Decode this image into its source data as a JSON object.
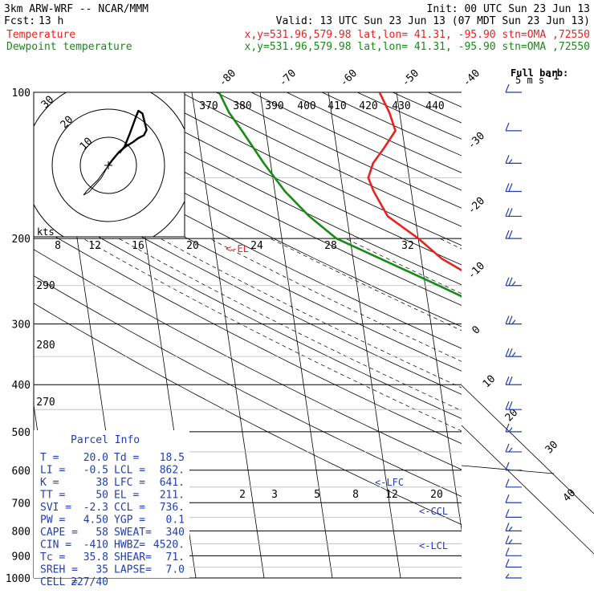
{
  "header": {
    "model": "3km ARW-WRF -- NCAR/MMM",
    "init": "Init: 00 UTC Sun 23 Jun 13",
    "fcst_label": "Fcst:",
    "fcst_value": "13 h",
    "valid": "Valid: 13 UTC Sun 23 Jun 13 (07 MDT Sun 23 Jun 13)",
    "temp_label": "Temperature",
    "temp_info": "x,y=531.96,579.98   lat,lon= 41.31, -95.90   stn=OMA ,72550",
    "dew_label": "Dewpoint temperature",
    "dew_info": "x,y=531.96,579.98   lat,lon= 41.31, -95.90   stn=OMA ,72550"
  },
  "barb_legend": {
    "line1": "Full barb:",
    "line2": "5 m s",
    "superscript": "-1"
  },
  "hodograph": {
    "units_label": "kts",
    "ring_labels": [
      "10",
      "20",
      "30"
    ]
  },
  "parcel_info": {
    "title": "Parcel Info",
    "rows": [
      [
        "T  =",
        "20.0",
        "Td =",
        "18.5"
      ],
      [
        "LI =",
        "-0.5",
        "LCL =",
        "862."
      ],
      [
        "K  =",
        "38",
        "LFC =",
        "641."
      ],
      [
        "TT =",
        "50",
        "EL  =",
        "211."
      ],
      [
        "SVI =",
        "-2.3",
        "CCL =",
        "736."
      ],
      [
        "PW =",
        "4.50",
        "YGP =",
        "0.1"
      ],
      [
        "CAPE =",
        "58",
        "SWEAT=",
        "340"
      ],
      [
        "CIN =",
        "-410",
        "HWBZ=",
        "4520."
      ],
      [
        "Tc =",
        "35.8",
        "SHEAR=",
        "71."
      ],
      [
        "SREH =",
        "35",
        "LAPSE=",
        "7.0"
      ],
      [
        "CELL =",
        "227/40",
        "",
        ""
      ]
    ]
  },
  "level_marks": {
    "el": "<-EL",
    "lfc": "<-LFC",
    "ccl": "<-CCL",
    "lcl": "<-LCL"
  },
  "colors": {
    "temperature": "#e8231e",
    "dewpoint": "#178a17",
    "barbs": "#1f3fb0",
    "grid": "#000000",
    "gray": "#b9b9b9"
  },
  "chart_data": {
    "type": "line",
    "title": "",
    "ylabel": "",
    "xlabel": "",
    "y_axis": {
      "scale": "log-pressure",
      "ticks": [
        100,
        200,
        300,
        400,
        500,
        600,
        700,
        800,
        900,
        1000
      ]
    },
    "isotherm_labels": [
      "-80",
      "-70",
      "-60",
      "-50",
      "-40",
      "-30",
      "-20",
      "-10",
      "0",
      "10",
      "20",
      "30",
      "40"
    ],
    "theta_labels": [
      "370",
      "380",
      "390",
      "400",
      "410",
      "420",
      "430",
      "440"
    ],
    "theta_side_labels": [
      "290",
      "280",
      "270"
    ],
    "mixing_ratio_labels": [
      "8",
      "12",
      "16",
      "20",
      "24",
      "28",
      "32"
    ],
    "mixing_ratio_lower_labels": [
      "2",
      "3",
      "5",
      "8",
      "12",
      "20"
    ],
    "series": [
      {
        "name": "Temperature",
        "points": [
          [
            1000,
            21.0
          ],
          [
            975,
            22.0
          ],
          [
            950,
            25.5
          ],
          [
            925,
            25.0
          ],
          [
            900,
            23.0
          ],
          [
            850,
            21.0
          ],
          [
            800,
            17.0
          ],
          [
            750,
            14.0
          ],
          [
            700,
            10.5
          ],
          [
            650,
            7.0
          ],
          [
            600,
            4.0
          ],
          [
            550,
            -0.2
          ],
          [
            500,
            -4.8
          ],
          [
            450,
            -10.0
          ],
          [
            400,
            -16.2
          ],
          [
            350,
            -23.5
          ],
          [
            300,
            -31.5
          ],
          [
            250,
            -40.8
          ],
          [
            220,
            -47.0
          ],
          [
            200,
            -50.0
          ],
          [
            180,
            -54.0
          ],
          [
            160,
            -55.5
          ],
          [
            150,
            -56.0
          ],
          [
            140,
            -55.0
          ],
          [
            130,
            -53.0
          ],
          [
            120,
            -51.0
          ],
          [
            110,
            -51.5
          ],
          [
            100,
            -52.5
          ]
        ]
      },
      {
        "name": "Dewpoint temperature",
        "points": [
          [
            1000,
            19.0
          ],
          [
            975,
            18.0
          ],
          [
            950,
            18.5
          ],
          [
            925,
            18.7
          ],
          [
            900,
            17.8
          ],
          [
            850,
            16.5
          ],
          [
            800,
            14.0
          ],
          [
            750,
            11.2
          ],
          [
            700,
            9.0
          ],
          [
            650,
            6.0
          ],
          [
            600,
            3.0
          ],
          [
            550,
            -0.5
          ],
          [
            500,
            -5.5
          ],
          [
            450,
            -11.5
          ],
          [
            400,
            -19.0
          ],
          [
            350,
            -27.5
          ],
          [
            300,
            -37.0
          ],
          [
            250,
            -48.0
          ],
          [
            200,
            -62.0
          ],
          [
            180,
            -65.5
          ],
          [
            160,
            -68.5
          ],
          [
            140,
            -71.0
          ],
          [
            120,
            -73.5
          ],
          [
            110,
            -75.0
          ],
          [
            100,
            -76.0
          ]
        ]
      }
    ],
    "hodograph_points": [
      [
        0,
        0
      ],
      [
        3,
        4
      ],
      [
        8,
        10
      ],
      [
        13,
        14
      ],
      [
        18,
        17
      ],
      [
        22,
        20
      ],
      [
        26,
        22
      ],
      [
        28,
        26
      ],
      [
        25,
        38
      ],
      [
        22,
        40
      ],
      [
        20,
        35
      ],
      [
        16,
        24
      ],
      [
        12,
        14
      ],
      [
        8,
        9
      ]
    ],
    "wind_barbs_ms": [
      [
        100,
        10
      ],
      [
        120,
        12
      ],
      [
        140,
        15
      ],
      [
        160,
        18
      ],
      [
        180,
        20
      ],
      [
        200,
        22
      ],
      [
        250,
        25
      ],
      [
        300,
        25
      ],
      [
        350,
        23
      ],
      [
        400,
        20
      ],
      [
        450,
        18
      ],
      [
        500,
        16
      ],
      [
        550,
        14
      ],
      [
        600,
        12
      ],
      [
        650,
        11
      ],
      [
        700,
        10
      ],
      [
        750,
        12
      ],
      [
        800,
        14
      ],
      [
        850,
        15
      ],
      [
        900,
        12
      ],
      [
        950,
        8
      ],
      [
        1000,
        5
      ]
    ]
  }
}
